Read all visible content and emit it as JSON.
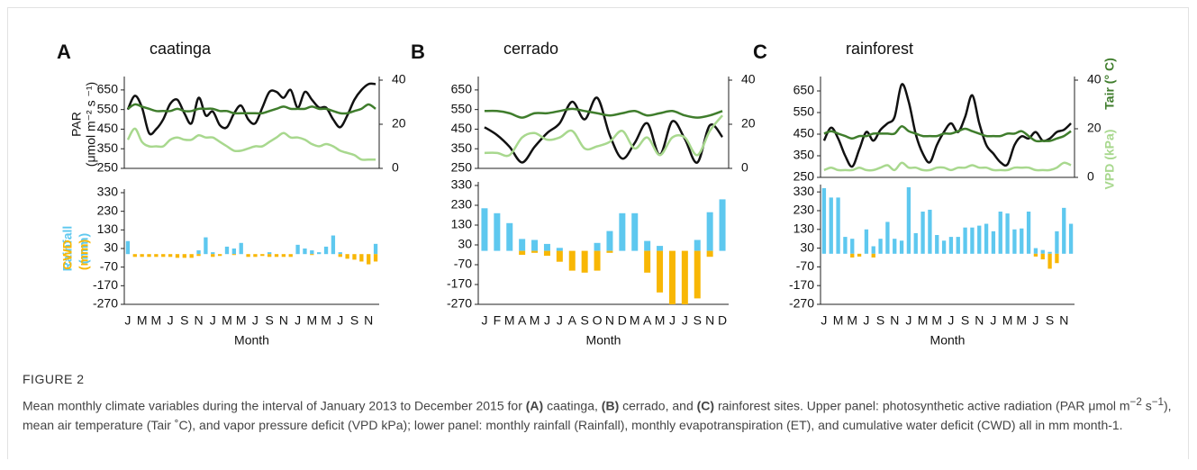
{
  "chart_data": [
    {
      "type": "line",
      "panel_label": "A",
      "title": "caatinga",
      "y_label": [
        "PAR",
        "(μmol m⁻² s ⁻¹)"
      ],
      "ylim": [
        250,
        700
      ],
      "yticks": [
        250,
        350,
        450,
        550,
        650
      ],
      "y2lim": [
        0,
        40
      ],
      "y2ticks": [
        0,
        20,
        40
      ],
      "series": [
        {
          "color": "#111111",
          "values": [
            550,
            620,
            560,
            430,
            450,
            500,
            580,
            600,
            530,
            480,
            610,
            520,
            540,
            470,
            460,
            530,
            570,
            500,
            480,
            560,
            640,
            640,
            610,
            650,
            560,
            640,
            600,
            560,
            560,
            500,
            460,
            520,
            600,
            650,
            680,
            680
          ]
        },
        {
          "color": "#3f7d2c",
          "axis": "y2",
          "values": [
            27,
            29,
            28,
            27,
            26,
            26,
            26,
            27,
            26,
            26,
            27,
            27,
            27,
            26,
            26,
            25,
            25,
            25,
            25,
            25,
            26,
            27,
            28,
            27,
            27,
            27,
            28,
            27,
            27,
            26,
            25,
            25,
            26,
            27,
            29,
            27
          ]
        },
        {
          "color": "#a8d88e",
          "axis": "y2",
          "values": [
            13,
            18,
            12,
            10,
            10,
            10,
            13,
            14,
            13,
            13,
            15,
            14,
            14,
            12,
            10,
            8,
            8,
            9,
            10,
            10,
            12,
            14,
            16,
            14,
            14,
            13,
            11,
            10,
            11,
            10,
            8,
            7,
            6,
            4,
            4,
            4
          ]
        }
      ]
    },
    {
      "type": "bar",
      "x_label": "Month",
      "rain_label": [
        "Rainfall",
        "(mm)"
      ],
      "cwd_label": [
        "CWD",
        "(mm)"
      ],
      "categories": [
        "J",
        null,
        "M",
        null,
        "M",
        null,
        "J",
        null,
        "S",
        null,
        "N",
        null,
        "J",
        null,
        "M",
        null,
        "M",
        null,
        "J",
        null,
        "S",
        null,
        "N",
        null,
        "J",
        null,
        "M",
        null,
        "M",
        null,
        "J",
        null,
        "S",
        null,
        "N",
        null
      ],
      "ylim": [
        -270,
        330
      ],
      "yticks": [
        -270,
        -170,
        -70,
        30,
        130,
        230,
        330
      ],
      "series": [
        {
          "color": "#5ec8ef",
          "values": [
            70,
            0,
            0,
            0,
            0,
            0,
            0,
            0,
            0,
            0,
            20,
            90,
            10,
            0,
            40,
            30,
            60,
            0,
            0,
            0,
            10,
            0,
            0,
            0,
            50,
            30,
            20,
            10,
            40,
            100,
            10,
            0,
            0,
            0,
            0,
            55
          ]
        },
        {
          "color": "#f8b705",
          "values": [
            0,
            -15,
            -15,
            -15,
            -15,
            -15,
            -15,
            -20,
            -20,
            -20,
            -10,
            0,
            -15,
            -10,
            0,
            -5,
            0,
            -15,
            -15,
            -10,
            -15,
            -15,
            -15,
            -15,
            0,
            0,
            -5,
            0,
            0,
            0,
            -15,
            -25,
            -30,
            -40,
            -55,
            -40
          ]
        }
      ]
    },
    {
      "type": "line",
      "panel_label": "B",
      "title": "cerrado",
      "ylim": [
        250,
        700
      ],
      "yticks": [
        250,
        350,
        450,
        550,
        650
      ],
      "y2lim": [
        0,
        40
      ],
      "y2ticks": [
        0,
        20,
        40
      ],
      "series": [
        {
          "color": "#111111",
          "values": [
            460,
            420,
            360,
            280,
            360,
            430,
            480,
            590,
            500,
            610,
            420,
            300,
            380,
            480,
            320,
            490,
            400,
            280,
            470,
            410
          ]
        },
        {
          "color": "#3f7d2c",
          "axis": "y2",
          "values": [
            26,
            26,
            25,
            23,
            25,
            25,
            26,
            27,
            26,
            25,
            24,
            25,
            26,
            24,
            25,
            26,
            24,
            23,
            24,
            26
          ]
        },
        {
          "color": "#a8d88e",
          "axis": "y2",
          "values": [
            7,
            7,
            6,
            14,
            16,
            13,
            14,
            17,
            9,
            10,
            12,
            17,
            9,
            14,
            6,
            14,
            14,
            6,
            17,
            24
          ]
        }
      ]
    },
    {
      "type": "bar",
      "x_label": "Month",
      "categories": [
        "J",
        "F",
        "M",
        "A",
        "M",
        "J",
        "J",
        "A",
        "S",
        "O",
        "N",
        "D",
        "M",
        "A",
        "M",
        "J",
        "J",
        "S",
        "N",
        "D"
      ],
      "ylim": [
        -270,
        330
      ],
      "yticks": [
        -270,
        -170,
        -70,
        30,
        130,
        230,
        330
      ],
      "series": [
        {
          "color": "#5ec8ef",
          "values": [
            215,
            190,
            140,
            60,
            55,
            35,
            15,
            0,
            0,
            40,
            100,
            190,
            190,
            50,
            25,
            0,
            0,
            55,
            195,
            260
          ]
        },
        {
          "color": "#f8b705",
          "values": [
            0,
            0,
            0,
            -20,
            -10,
            -25,
            -55,
            -100,
            -110,
            -100,
            -10,
            0,
            0,
            -110,
            -210,
            -270,
            -270,
            -240,
            -30,
            0
          ]
        }
      ]
    },
    {
      "type": "line",
      "panel_label": "C",
      "title": "rainforest",
      "y2_label": [
        "Tair (° C)",
        "VPD (kPa)"
      ],
      "ylim": [
        250,
        700
      ],
      "yticks": [
        250,
        350,
        450,
        550,
        650
      ],
      "y2lim": [
        0,
        40
      ],
      "y2ticks": [
        0,
        20,
        40
      ],
      "series": [
        {
          "color": "#111111",
          "values": [
            420,
            480,
            430,
            350,
            300,
            380,
            460,
            420,
            470,
            500,
            530,
            680,
            600,
            450,
            360,
            320,
            400,
            460,
            500,
            460,
            530,
            630,
            500,
            400,
            360,
            320,
            310,
            400,
            440,
            430,
            460,
            420,
            430,
            460,
            470,
            500
          ]
        },
        {
          "color": "#3f7d2c",
          "axis": "y2",
          "values": [
            18,
            19,
            18,
            17,
            16,
            17,
            17,
            18,
            18,
            18,
            18,
            21,
            19,
            18,
            17,
            17,
            17,
            18,
            18,
            19,
            20,
            19,
            18,
            17,
            17,
            17,
            18,
            18,
            19,
            17,
            15,
            15,
            15,
            16,
            17,
            19
          ]
        },
        {
          "color": "#a8d88e",
          "axis": "y2",
          "values": [
            3,
            4,
            3,
            3,
            3,
            4,
            3,
            3,
            4,
            5,
            3,
            6,
            4,
            4,
            3,
            3,
            4,
            4,
            3,
            4,
            4,
            5,
            4,
            4,
            3,
            3,
            3,
            4,
            4,
            4,
            3,
            3,
            3,
            4,
            6,
            5
          ]
        }
      ]
    },
    {
      "type": "bar",
      "x_label": "Month",
      "categories": [
        "J",
        null,
        "M",
        null,
        "M",
        null,
        "J",
        null,
        "S",
        null,
        "N",
        null,
        "J",
        null,
        "M",
        null,
        "M",
        null,
        "J",
        null,
        "S",
        null,
        "N",
        null,
        "J",
        null,
        "M",
        null,
        "M",
        null,
        "J",
        null,
        "S",
        null,
        "N",
        null
      ],
      "ylim": [
        -270,
        350
      ],
      "yticks": [
        -270,
        -170,
        -70,
        30,
        130,
        230,
        330
      ],
      "series": [
        {
          "color": "#5ec8ef",
          "values": [
            350,
            300,
            300,
            90,
            80,
            0,
            130,
            40,
            80,
            170,
            80,
            70,
            355,
            110,
            225,
            235,
            100,
            70,
            90,
            90,
            140,
            140,
            150,
            160,
            120,
            225,
            215,
            130,
            135,
            225,
            30,
            20,
            10,
            120,
            245,
            160
          ]
        },
        {
          "color": "#f8b705",
          "values": [
            0,
            0,
            0,
            0,
            -20,
            -15,
            0,
            -20,
            0,
            0,
            0,
            0,
            0,
            0,
            0,
            0,
            0,
            0,
            0,
            0,
            0,
            0,
            0,
            0,
            0,
            0,
            0,
            0,
            0,
            0,
            -15,
            -30,
            -80,
            -50,
            0,
            0
          ]
        }
      ]
    }
  ],
  "caption": {
    "label": "FIGURE 2",
    "segments": [
      "Mean monthly climate variables during the interval of January 2013 to December 2015 for ",
      "(A)",
      " caatinga, ",
      "(B)",
      " cerrado, and ",
      "(C)",
      " rainforest sites. Upper panel: photosynthetic active radiation (PAR μmol m",
      "−2",
      " s",
      "−1",
      "), mean air temperature (Tair ˚C), and vapor pressure deficit (VPD kPa); lower panel: monthly rainfall (Rainfall), monthly evapotranspiration (ET), and cumulative water deficit (CWD) all in mm month-1."
    ]
  }
}
